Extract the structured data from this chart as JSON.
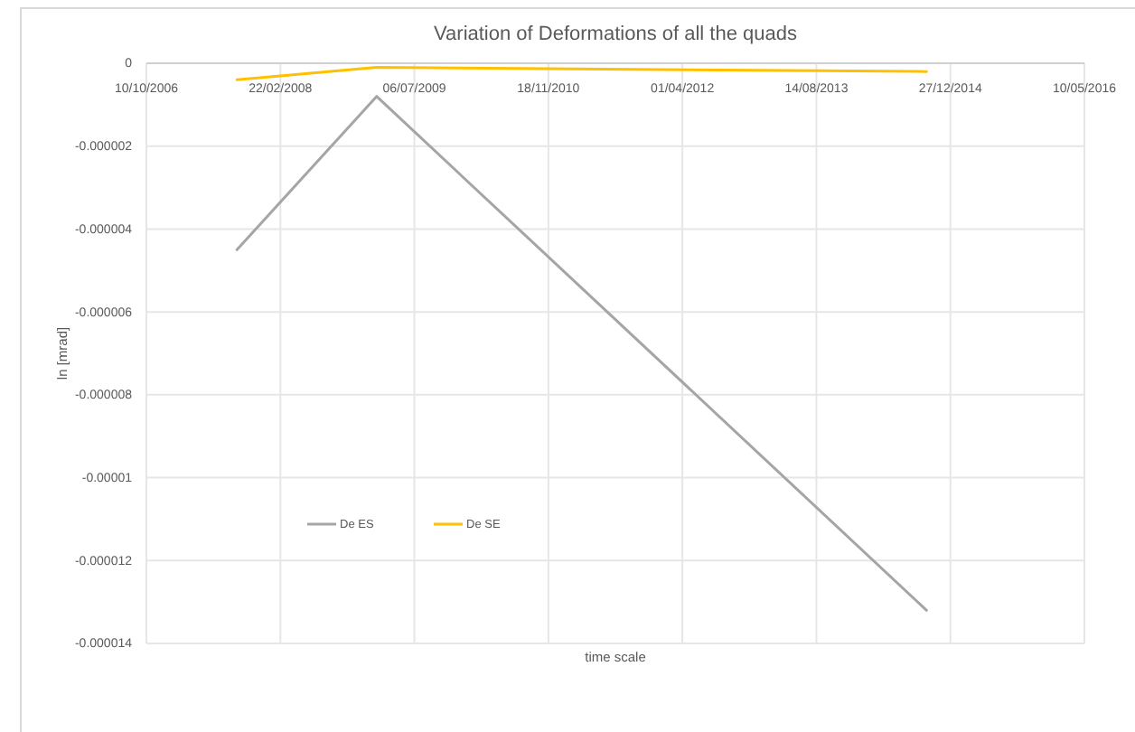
{
  "chart_data": {
    "type": "line",
    "title": "Variation of Deformations of all the quads",
    "xlabel": "time scale",
    "ylabel": "ln [mrad]",
    "x": [
      "2007-09-13",
      "2009-02-15",
      "2014-09-29"
    ],
    "series": [
      {
        "name": "De ES",
        "color": "#a5a5a5",
        "values": [
          -4.5e-06,
          -8e-07,
          -1.32e-05
        ]
      },
      {
        "name": "De SE",
        "color": "#ffc000",
        "values": [
          -4e-07,
          -1e-07,
          -2e-07
        ]
      }
    ],
    "xlim": [
      "2006-10-10",
      "2016-05-10"
    ],
    "xticks": [
      {
        "value": "2006-10-10",
        "label": "10/10/2006"
      },
      {
        "value": "2008-02-22",
        "label": "22/02/2008"
      },
      {
        "value": "2009-07-06",
        "label": "06/07/2009"
      },
      {
        "value": "2010-11-18",
        "label": "18/11/2010"
      },
      {
        "value": "2012-04-01",
        "label": "01/04/2012"
      },
      {
        "value": "2013-08-14",
        "label": "14/08/2013"
      },
      {
        "value": "2014-12-27",
        "label": "27/12/2014"
      },
      {
        "value": "2016-05-10",
        "label": "10/05/2016"
      }
    ],
    "ylim": [
      -1.4e-05,
      0
    ],
    "yticks": [
      0,
      {
        "value": -2e-06,
        "label": "-0.000002"
      },
      {
        "value": -4e-06,
        "label": "-0.000004"
      },
      {
        "value": -6e-06,
        "label": "-0.000006"
      },
      {
        "value": -8e-06,
        "label": "-0.000008"
      },
      {
        "value": -1e-05,
        "label": "-0.00001"
      },
      {
        "value": -1.2e-05,
        "label": "-0.000012"
      },
      {
        "value": -1.4e-05,
        "label": "-0.000014"
      }
    ],
    "grid": true,
    "legend": "bottom left",
    "marker": "none",
    "line_style": "solid"
  }
}
